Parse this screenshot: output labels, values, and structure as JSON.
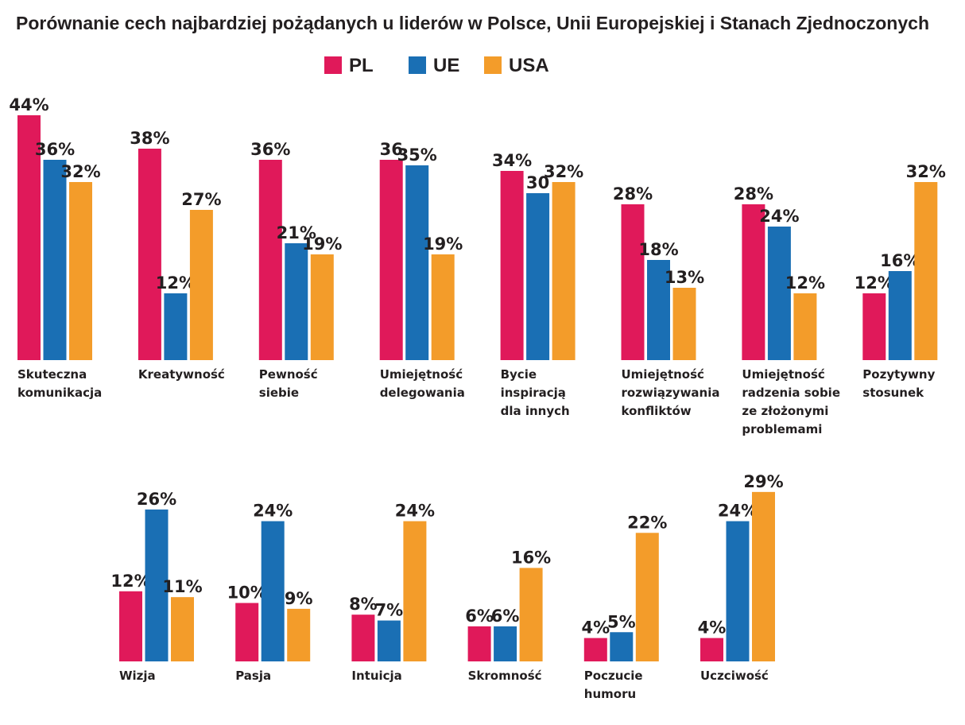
{
  "chart_data": {
    "type": "bar",
    "title": "Porównanie cech najbardziej pożądanych u liderów w Polsce, Unii Europejskiej i Stanach Zjednoczonych",
    "xlabel": "",
    "ylabel": "",
    "ylim": [
      0,
      44
    ],
    "grid": false,
    "legend_position": "top-center",
    "series": [
      {
        "name": "PL",
        "color": "#e0195a"
      },
      {
        "name": "UE",
        "color": "#1a6fb4"
      },
      {
        "name": "USA",
        "color": "#f39c2a"
      }
    ],
    "panels": [
      {
        "categories": [
          {
            "lines": [
              "Skuteczna",
              "komunikacja"
            ],
            "values": [
              44,
              36,
              32
            ],
            "labels": [
              "44%",
              "36%",
              "32%"
            ]
          },
          {
            "lines": [
              "Kreatywność"
            ],
            "values": [
              38,
              12,
              27
            ],
            "labels": [
              "38%",
              "12%",
              "27%"
            ]
          },
          {
            "lines": [
              "Pewność",
              "siebie"
            ],
            "values": [
              36,
              21,
              19
            ],
            "labels": [
              "36%",
              "21%",
              "19%"
            ]
          },
          {
            "lines": [
              "Umiejętność",
              "delegowania"
            ],
            "values": [
              36,
              35,
              19
            ],
            "labels": [
              "36",
              "35%",
              "19%"
            ]
          },
          {
            "lines": [
              "Bycie",
              "inspiracją",
              "dla innych"
            ],
            "values": [
              34,
              30,
              32
            ],
            "labels": [
              "34%",
              "30",
              "32%"
            ]
          },
          {
            "lines": [
              "Umiejętność",
              "rozwiązywania",
              "konfliktów"
            ],
            "values": [
              28,
              18,
              13
            ],
            "labels": [
              "28%",
              "18%",
              "13%"
            ]
          },
          {
            "lines": [
              "Umiejętność",
              "radzenia sobie",
              "ze złożonymi",
              "problemami"
            ],
            "values": [
              28,
              24,
              12
            ],
            "labels": [
              "28%",
              "24%",
              "12%"
            ]
          },
          {
            "lines": [
              "Pozytywny",
              "stosunek"
            ],
            "values": [
              12,
              16,
              32
            ],
            "labels": [
              "12%",
              "16%",
              "32%"
            ]
          }
        ]
      },
      {
        "categories": [
          {
            "lines": [
              "Wizja"
            ],
            "values": [
              12,
              26,
              11
            ],
            "labels": [
              "12%",
              "26%",
              "11%"
            ]
          },
          {
            "lines": [
              "Pasja"
            ],
            "values": [
              10,
              24,
              9
            ],
            "labels": [
              "10%",
              "24%",
              "9%"
            ]
          },
          {
            "lines": [
              "Intuicja"
            ],
            "values": [
              8,
              7,
              24
            ],
            "labels": [
              "8%",
              "7%",
              "24%"
            ]
          },
          {
            "lines": [
              "Skromność"
            ],
            "values": [
              6,
              6,
              16
            ],
            "labels": [
              "6%",
              "6%",
              "16%"
            ]
          },
          {
            "lines": [
              "Poczucie",
              "humoru"
            ],
            "values": [
              4,
              5,
              22
            ],
            "labels": [
              "4%",
              "5%",
              "22%"
            ]
          },
          {
            "lines": [
              "Uczciwość"
            ],
            "values": [
              4,
              24,
              29
            ],
            "labels": [
              "4%",
              "24%",
              "29%"
            ]
          }
        ]
      }
    ]
  }
}
